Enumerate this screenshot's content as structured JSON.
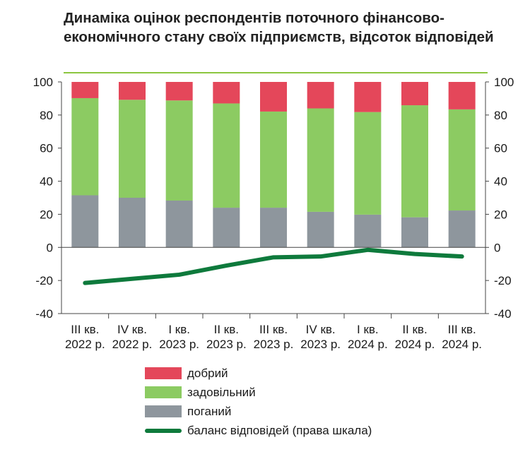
{
  "title": "Динаміка оцінок респондентів поточного  фінансово-економічного стану своїх підприємств, відсоток відповідей",
  "colors": {
    "good": "#e4475a",
    "satisfactory": "#8ccb62",
    "bad": "#8e969d",
    "balance": "#0e7a3c",
    "accent_rule": "#8cc63f"
  },
  "chart_data": {
    "type": "bar",
    "stacked": true,
    "categories": [
      [
        "III кв.",
        "2022 р."
      ],
      [
        "IV кв.",
        "2022 р."
      ],
      [
        "I кв.",
        "2023 р."
      ],
      [
        "II кв.",
        "2023 р."
      ],
      [
        "III кв.",
        "2023 р."
      ],
      [
        "IV кв.",
        "2023 р."
      ],
      [
        "I кв.",
        "2024 р."
      ],
      [
        "II кв.",
        "2024 р."
      ],
      [
        "III кв.",
        "2024 р."
      ]
    ],
    "series": [
      {
        "name": "поганий",
        "key": "bad",
        "values": [
          31.5,
          30,
          28.3,
          24,
          24,
          21.5,
          19.8,
          18.2,
          22.3
        ]
      },
      {
        "name": "задовільний",
        "key": "satisfactory",
        "values": [
          58.7,
          59.2,
          60.5,
          63,
          58.1,
          62.5,
          62,
          67.7,
          61.1
        ]
      },
      {
        "name": "добрий",
        "key": "good",
        "values": [
          9.8,
          10.8,
          11.2,
          13,
          17.9,
          16,
          18.2,
          14.1,
          16.6
        ]
      }
    ],
    "line": {
      "name": "баланс відповідей (права шкала)",
      "axis": "right",
      "values": [
        -21.5,
        -19,
        -16.5,
        -11,
        -6,
        -5.5,
        -1.5,
        -4,
        -5.5
      ]
    },
    "ylim_left": [
      -40,
      100
    ],
    "ylim_right": [
      -40,
      100
    ],
    "yticks": [
      100,
      80,
      60,
      40,
      20,
      0,
      -20,
      -40
    ],
    "legend_position": "bottom",
    "grid": false
  },
  "legend": [
    {
      "label": "добрий",
      "kind": "box",
      "color_key": "good"
    },
    {
      "label": "задовільний",
      "kind": "box",
      "color_key": "satisfactory"
    },
    {
      "label": "поганий",
      "kind": "box",
      "color_key": "bad"
    },
    {
      "label": "баланс відповідей (права шкала)",
      "kind": "line",
      "color_key": "balance"
    }
  ]
}
